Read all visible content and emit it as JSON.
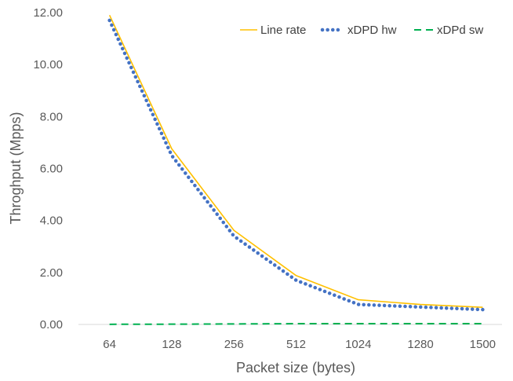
{
  "chart_data": {
    "type": "line",
    "xlabel": "Packet size (bytes)",
    "ylabel": "Throghput (Mpps)",
    "categories": [
      "64",
      "128",
      "256",
      "512",
      "1024",
      "1280",
      "1500"
    ],
    "ylim": [
      0,
      12
    ],
    "yticks": [
      "0.00",
      "2.00",
      "4.00",
      "6.00",
      "8.00",
      "10.00",
      "12.00"
    ],
    "grid": "none",
    "legend_position": "top-right",
    "series": [
      {
        "name": "Line rate",
        "values": [
          11.9,
          6.76,
          3.62,
          1.88,
          0.95,
          0.77,
          0.66
        ],
        "color": "#FFC000",
        "style": "solid"
      },
      {
        "name": "xDPD hw",
        "values": [
          11.7,
          6.5,
          3.4,
          1.7,
          0.77,
          0.67,
          0.57
        ],
        "color": "#4472C4",
        "style": "dotted"
      },
      {
        "name": "xDPd sw",
        "values": [
          0.005,
          0.01,
          0.02,
          0.03,
          0.03,
          0.03,
          0.03
        ],
        "color": "#00B050",
        "style": "dashed"
      }
    ]
  }
}
